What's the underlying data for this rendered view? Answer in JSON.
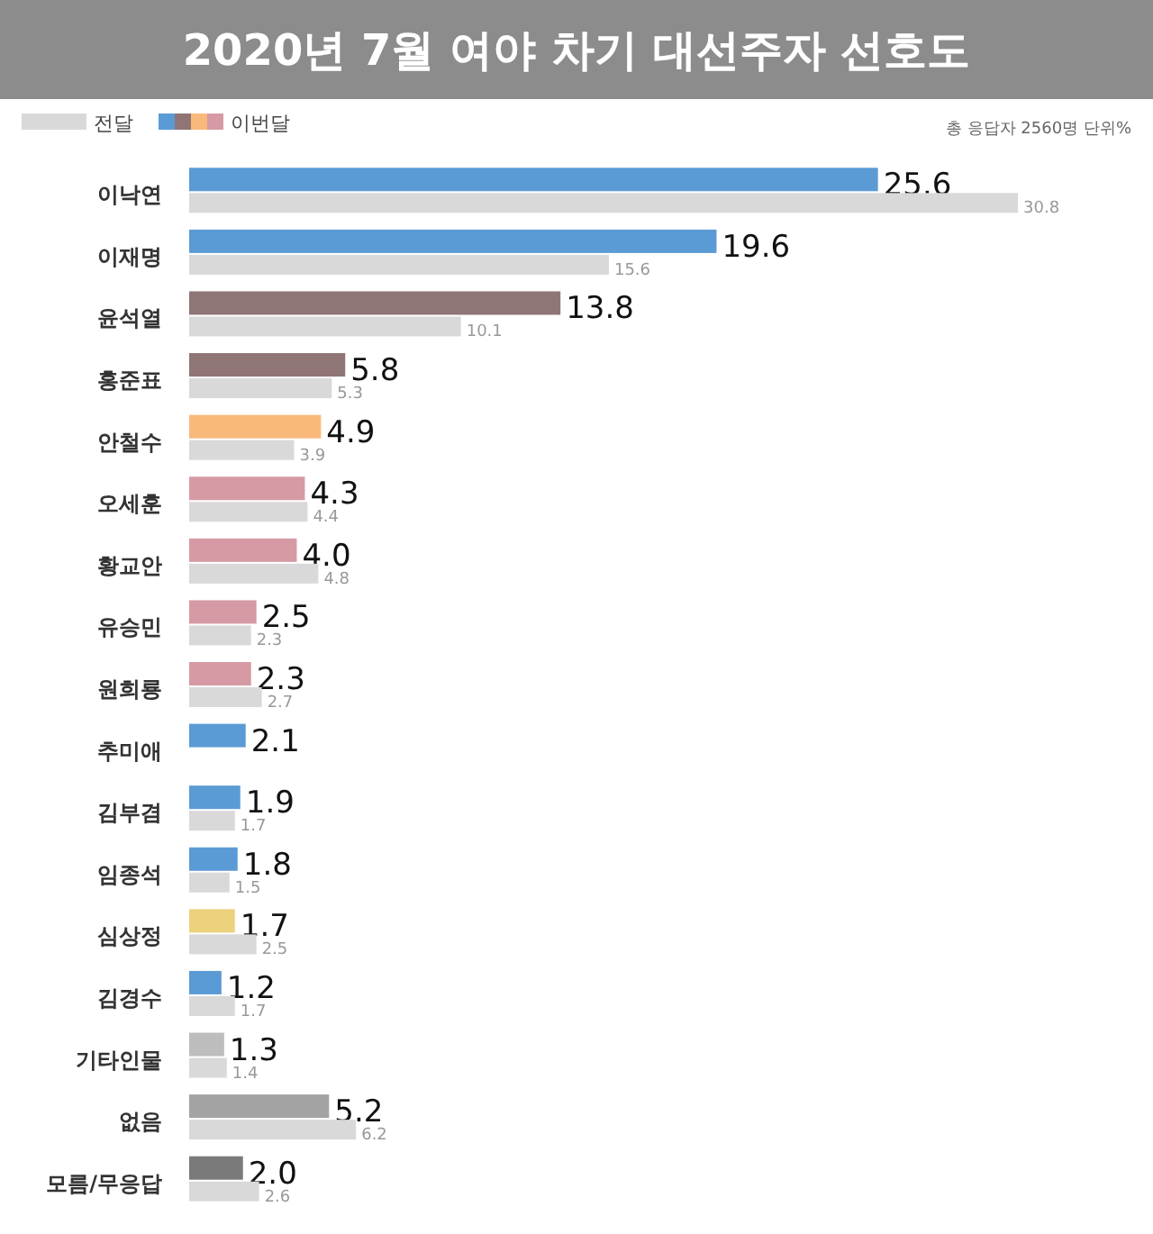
{
  "chart_data": {
    "type": "bar",
    "orientation": "horizontal",
    "title": "2020년 7월 여야 차기 대선주자 선호도",
    "categories": [
      "이낙연",
      "이재명",
      "윤석열",
      "홍준표",
      "안철수",
      "오세훈",
      "황교안",
      "유승민",
      "원희룡",
      "추미애",
      "김부겸",
      "임종석",
      "심상정",
      "김경수",
      "기타인물",
      "없음",
      "모름/무응답"
    ],
    "series": [
      {
        "name": "이번달",
        "colors": [
          "#5b9bd5",
          "#5b9bd5",
          "#8f7575",
          "#8f7575",
          "#f9b97a",
          "#d59aa4",
          "#d59aa4",
          "#d59aa4",
          "#d59aa4",
          "#5b9bd5",
          "#5b9bd5",
          "#5b9bd5",
          "#ecd27c",
          "#5b9bd5",
          "#bdbdbd",
          "#a3a3a3",
          "#7a7a7a"
        ],
        "values": [
          25.6,
          19.6,
          13.8,
          5.8,
          4.9,
          4.3,
          4.0,
          2.5,
          2.3,
          2.1,
          1.9,
          1.8,
          1.7,
          1.2,
          1.3,
          5.2,
          2.0
        ],
        "value_labels": [
          "25.6",
          "19.6",
          "13.8",
          "5.8",
          "4.9",
          "4.3",
          "4.0",
          "2.5",
          "2.3",
          "2.1",
          "1.9",
          "1.8",
          "1.7",
          "1.2",
          "1.3",
          "5.2",
          "2.0"
        ]
      },
      {
        "name": "전달",
        "color": "#d9d9d9",
        "values": [
          30.8,
          15.6,
          10.1,
          5.3,
          3.9,
          4.4,
          4.8,
          2.3,
          2.7,
          null,
          1.7,
          1.5,
          2.5,
          1.7,
          1.4,
          6.2,
          2.6
        ],
        "value_labels": [
          "30.8",
          "15.6",
          "10.1",
          "5.3",
          "3.9",
          "4.4",
          "4.8",
          "2.3",
          "2.7",
          null,
          "1.7",
          "1.5",
          "2.5",
          "1.7",
          "1.4",
          "6.2",
          "2.6"
        ]
      }
    ],
    "legend": "top left",
    "annotations": [
      "총 응답자 2560명  단위%"
    ]
  }
}
